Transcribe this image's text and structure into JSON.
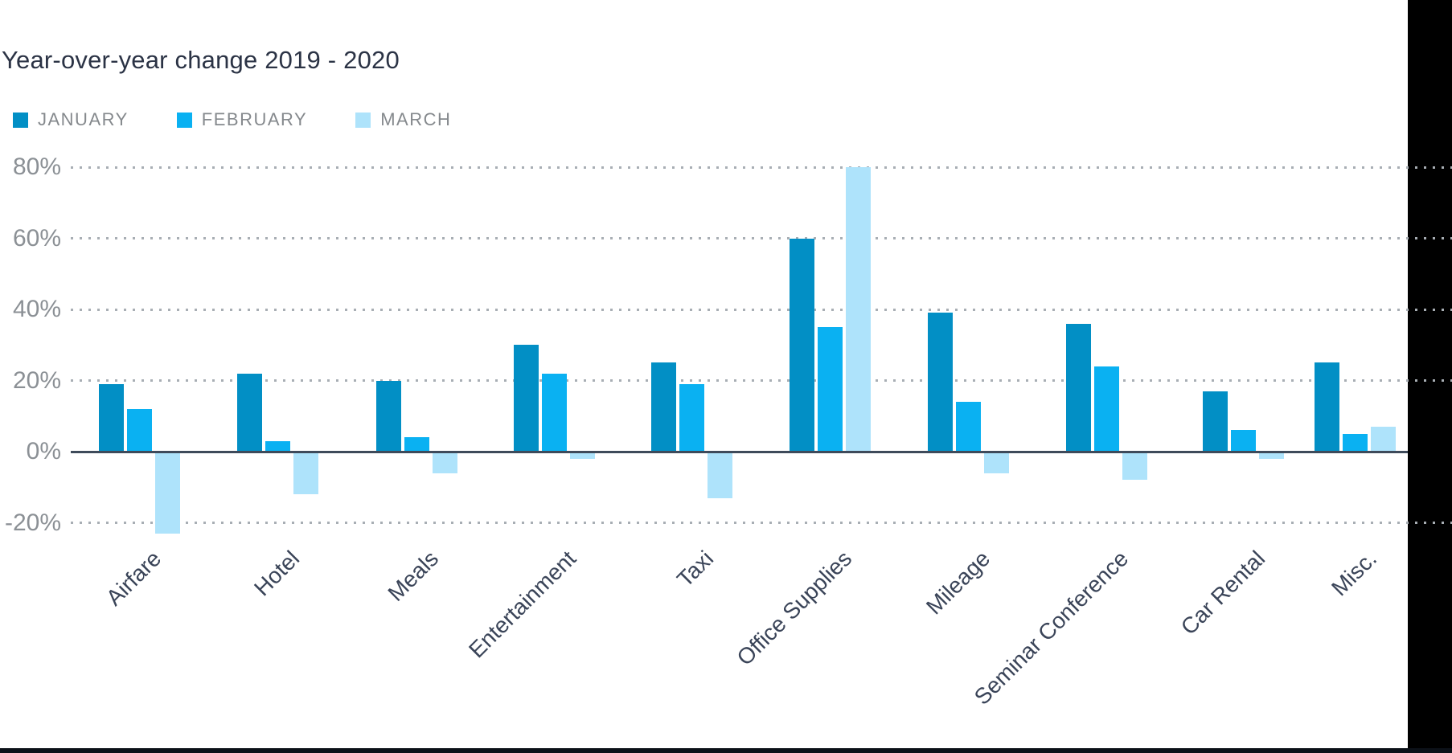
{
  "title": "Year-over-year change 2019 - 2020",
  "legend": [
    {
      "label": "JANUARY",
      "color": "#028fc5"
    },
    {
      "label": "FEBRUARY",
      "color": "#0ab1f2"
    },
    {
      "label": "MARCH",
      "color": "#aee3fb"
    }
  ],
  "chart_data": {
    "type": "bar",
    "title": "Year-over-year change 2019 - 2020",
    "categories": [
      "Airfare",
      "Hotel",
      "Meals",
      "Entertainment",
      "Taxi",
      "Office Supplies",
      "Mileage",
      "Seminar Conference",
      "Car Rental",
      "Misc."
    ],
    "series": [
      {
        "name": "JANUARY",
        "color": "#028fc5",
        "values": [
          19,
          22,
          20,
          30,
          25,
          60,
          39,
          36,
          17,
          25
        ]
      },
      {
        "name": "FEBRUARY",
        "color": "#0ab1f2",
        "values": [
          12,
          3,
          4,
          22,
          19,
          35,
          14,
          24,
          6,
          5
        ]
      },
      {
        "name": "MARCH",
        "color": "#aee3fb",
        "values": [
          -23,
          -12,
          -6,
          -2,
          -13,
          80,
          -6,
          -8,
          -2,
          7
        ]
      }
    ],
    "yticks": [
      80,
      60,
      40,
      20,
      0,
      -20
    ],
    "ytick_labels": [
      "80%",
      "60%",
      "40%",
      "20%",
      "0%",
      "-20%"
    ],
    "ylabel": "",
    "xlabel": "",
    "ylim": [
      -25,
      85
    ],
    "grid": "horizontal dotted",
    "legend_position": "top-left",
    "category_label_rotation": -45
  },
  "colors": {
    "background": "#ffffff",
    "right_band": "#000000",
    "bottom_band": "#0c1118",
    "zero_line": "#3e4a5a",
    "gridline": "#a8aeb4",
    "title_text": "#2b3345",
    "axis_label_text": "#8b9095",
    "category_label_text": "#3a4458",
    "legend_text": "#85898d"
  }
}
